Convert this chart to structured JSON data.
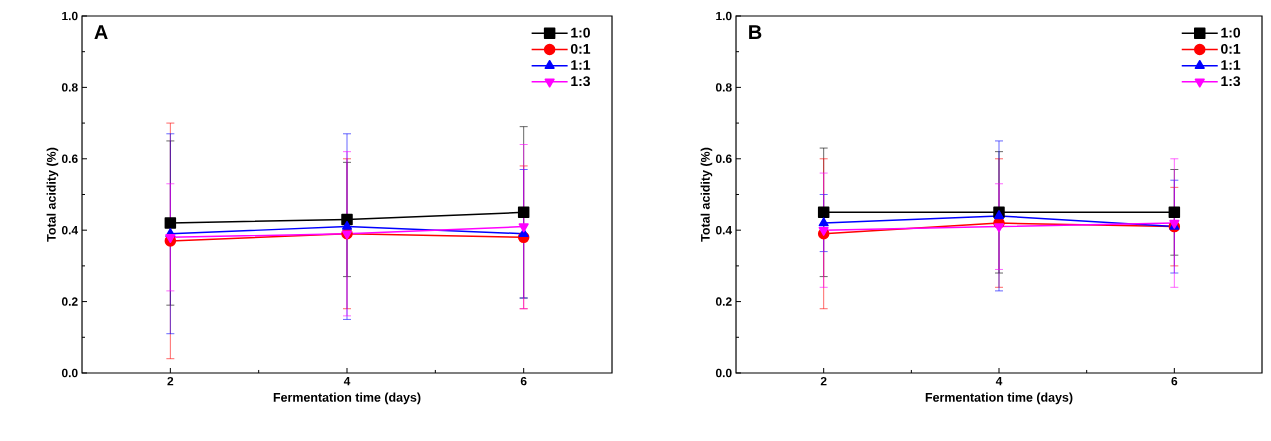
{
  "chart_data": [
    {
      "type": "line",
      "annotations": [
        "A"
      ],
      "xlabel": "Fermentation time (days)",
      "ylabel": "Total acidity (%)",
      "x": [
        2,
        4,
        6
      ],
      "xlim": [
        1,
        7
      ],
      "xticks": [
        2,
        4,
        6
      ],
      "ylim": [
        0,
        1.0
      ],
      "yticks": [
        {
          "value": 0,
          "label": "0.0"
        },
        {
          "value": 0.2,
          "label": "0.2"
        },
        {
          "value": 0.4,
          "label": "0.4"
        },
        {
          "value": 0.6,
          "label": "0.6"
        },
        {
          "value": 0.8,
          "label": "0.8"
        },
        {
          "value": 1.0,
          "label": "1.0"
        }
      ],
      "legend": "top right",
      "line_style": "solid",
      "grid": false,
      "series": [
        {
          "name": "1:0",
          "color": "#000000",
          "marker": "square",
          "values": [
            0.42,
            0.43,
            0.45
          ],
          "errors": [
            0.23,
            0.16,
            0.24
          ]
        },
        {
          "name": "0:1",
          "color": "#ff0000",
          "marker": "circle",
          "values": [
            0.37,
            0.39,
            0.38
          ],
          "errors": [
            0.33,
            0.21,
            0.2
          ]
        },
        {
          "name": "1:1",
          "color": "#0000ff",
          "marker": "triangle",
          "values": [
            0.39,
            0.41,
            0.39
          ],
          "errors": [
            0.28,
            0.26,
            0.18
          ]
        },
        {
          "name": "1:3",
          "color": "#ff00ff",
          "marker": "triangle-down",
          "values": [
            0.38,
            0.39,
            0.41
          ],
          "errors": [
            0.15,
            0.23,
            0.23
          ]
        }
      ]
    },
    {
      "type": "line",
      "annotations": [
        "B"
      ],
      "xlabel": "Fermentation time (days)",
      "ylabel": "Total acidity (%)",
      "x": [
        2,
        4,
        6
      ],
      "xlim": [
        1,
        7
      ],
      "xticks": [
        2,
        4,
        6
      ],
      "ylim": [
        0,
        1.0
      ],
      "yticks": [
        {
          "value": 0,
          "label": "0.0"
        },
        {
          "value": 0.2,
          "label": "0.2"
        },
        {
          "value": 0.4,
          "label": "0.4"
        },
        {
          "value": 0.6,
          "label": "0.6"
        },
        {
          "value": 0.8,
          "label": "0.8"
        },
        {
          "value": 1.0,
          "label": "1.0"
        }
      ],
      "legend": "top right",
      "line_style": "solid",
      "grid": false,
      "series": [
        {
          "name": "1:0",
          "color": "#000000",
          "marker": "square",
          "values": [
            0.45,
            0.45,
            0.45
          ],
          "errors": [
            0.18,
            0.17,
            0.12
          ]
        },
        {
          "name": "0:1",
          "color": "#ff0000",
          "marker": "circle",
          "values": [
            0.39,
            0.42,
            0.41
          ],
          "errors": [
            0.21,
            0.18,
            0.11
          ]
        },
        {
          "name": "1:1",
          "color": "#0000ff",
          "marker": "triangle",
          "values": [
            0.42,
            0.44,
            0.41
          ],
          "errors": [
            0.08,
            0.21,
            0.13
          ]
        },
        {
          "name": "1:3",
          "color": "#ff00ff",
          "marker": "triangle-down",
          "values": [
            0.4,
            0.41,
            0.42
          ],
          "errors": [
            0.16,
            0.12,
            0.18
          ]
        }
      ]
    }
  ]
}
